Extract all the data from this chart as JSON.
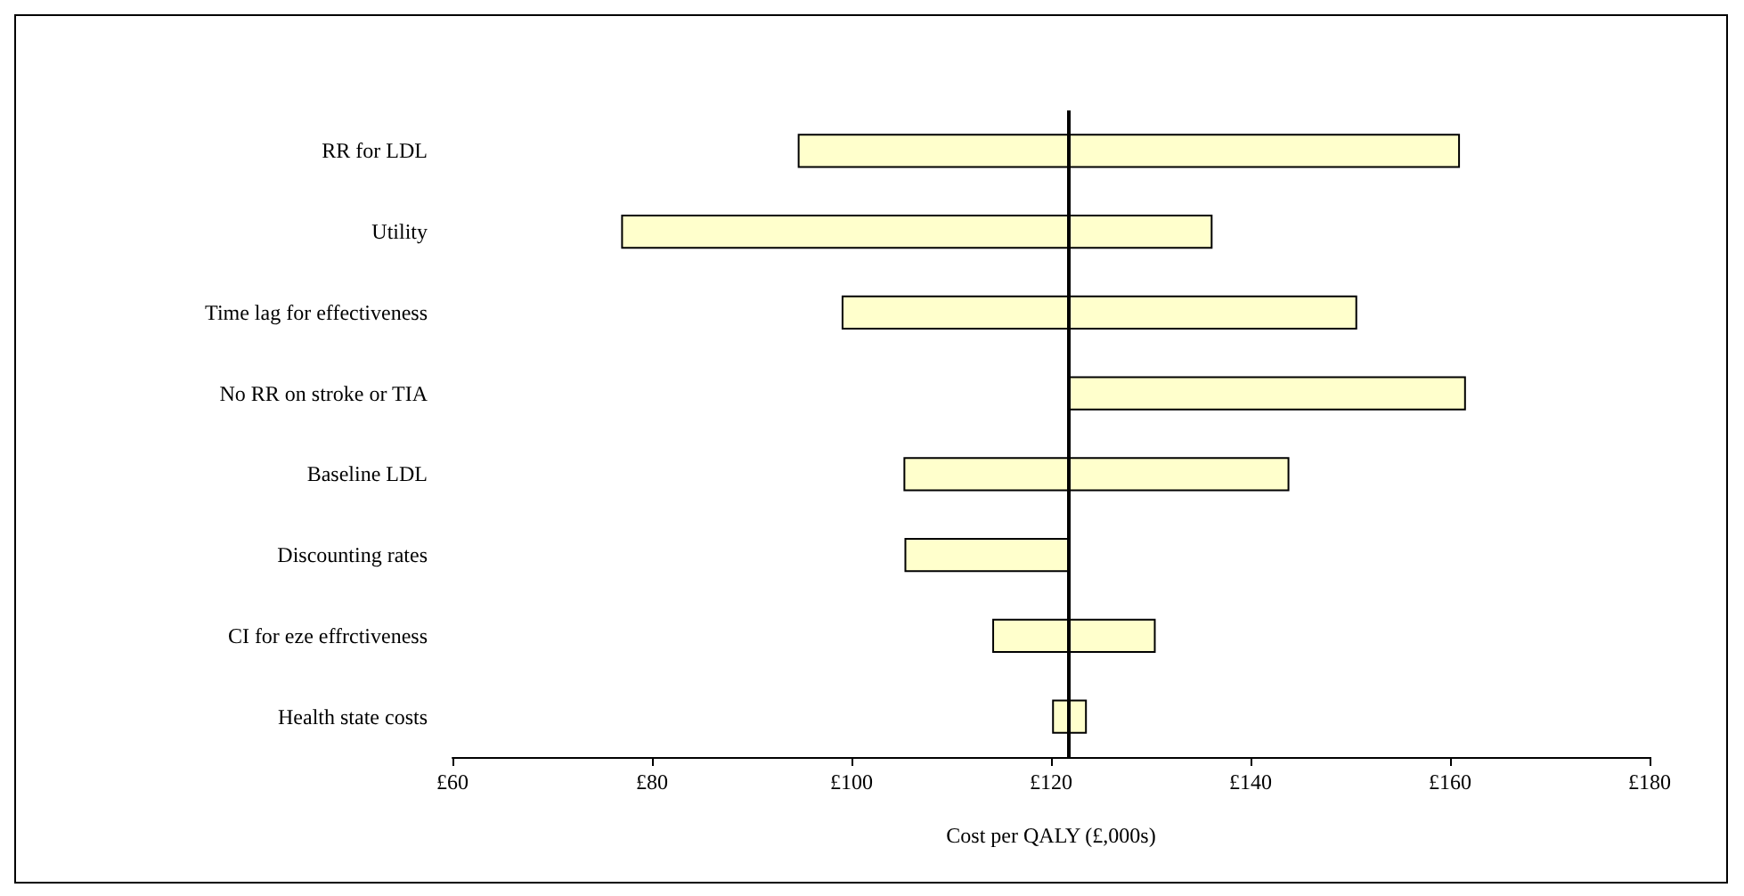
{
  "chart_data": {
    "type": "bar",
    "orientation": "horizontal",
    "xlabel": "Cost per QALY (£,000s)",
    "categories": [
      "RR for LDL",
      "Utility",
      "Time lag for effectiveness",
      "No RR on stroke or TIA",
      "Baseline LDL",
      "Discounting rates",
      "CI for eze effrctiveness",
      "Health state costs"
    ],
    "values": [
      66.2,
      59.1,
      51.5,
      39.8,
      38.5,
      16.3,
      16.2,
      3.3
    ],
    "base": [
      94.7,
      77.0,
      99.1,
      121.7,
      105.3,
      105.4,
      114.2,
      120.2
    ],
    "color": "#ffffcc",
    "xlim": [
      60,
      180
    ],
    "xticks": [
      {
        "value": 60,
        "label": "£60"
      },
      {
        "value": 80,
        "label": "£80"
      },
      {
        "value": 100,
        "label": "£100"
      },
      {
        "value": 120,
        "label": "£120"
      },
      {
        "value": 140,
        "label": "£140"
      },
      {
        "value": 160,
        "label": "£160"
      },
      {
        "value": 180,
        "label": "£180"
      }
    ],
    "ref_lines": [
      {
        "axis": "x",
        "value": 121.7,
        "color": "#000000"
      }
    ],
    "grid": false
  }
}
